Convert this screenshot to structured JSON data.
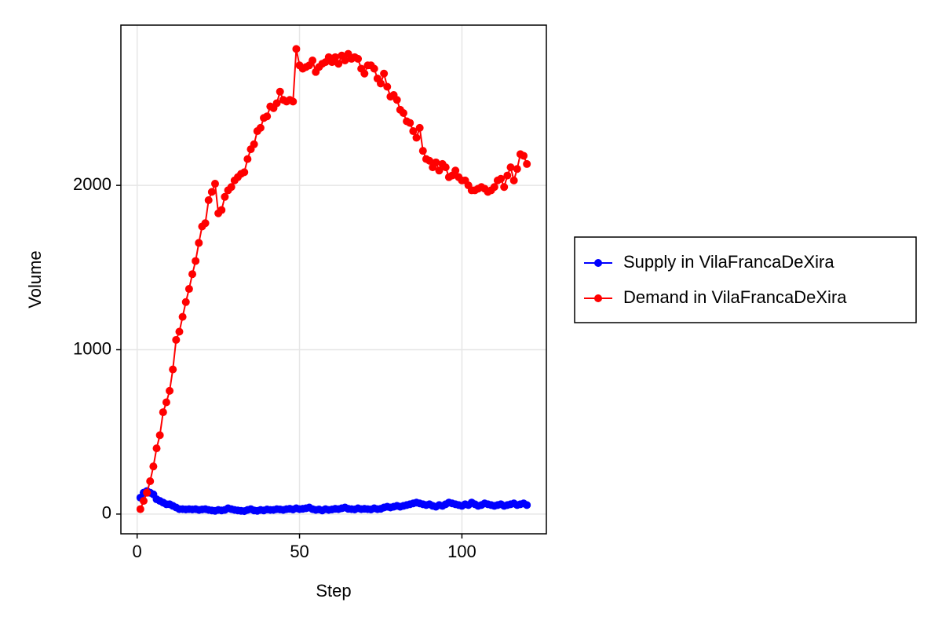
{
  "chart_data": {
    "type": "line",
    "x_label": "Step",
    "y_label": "Volume",
    "x": [
      1,
      2,
      3,
      4,
      5,
      6,
      7,
      8,
      9,
      10,
      11,
      12,
      13,
      14,
      15,
      16,
      17,
      18,
      19,
      20,
      21,
      22,
      23,
      24,
      25,
      26,
      27,
      28,
      29,
      30,
      31,
      32,
      33,
      34,
      35,
      36,
      37,
      38,
      39,
      40,
      41,
      42,
      43,
      44,
      45,
      46,
      47,
      48,
      49,
      50,
      51,
      52,
      53,
      54,
      55,
      56,
      57,
      58,
      59,
      60,
      61,
      62,
      63,
      64,
      65,
      66,
      67,
      68,
      69,
      70,
      71,
      72,
      73,
      74,
      75,
      76,
      77,
      78,
      79,
      80,
      81,
      82,
      83,
      84,
      85,
      86,
      87,
      88,
      89,
      90,
      91,
      92,
      93,
      94,
      95,
      96,
      97,
      98,
      99,
      100,
      101,
      102,
      103,
      104,
      105,
      106,
      107,
      108,
      109,
      110,
      111,
      112,
      113,
      114,
      115,
      116,
      117,
      118,
      119,
      120
    ],
    "series": [
      {
        "name": "Supply in VilaFrancaDeXira",
        "color": "#0000ff",
        "values": [
          100,
          130,
          140,
          130,
          120,
          90,
          80,
          70,
          60,
          60,
          50,
          40,
          30,
          30,
          28,
          30,
          28,
          30,
          25,
          28,
          30,
          25,
          22,
          20,
          25,
          22,
          25,
          35,
          30,
          25,
          22,
          20,
          18,
          25,
          30,
          22,
          20,
          25,
          22,
          28,
          25,
          25,
          30,
          28,
          25,
          30,
          32,
          28,
          35,
          30,
          32,
          35,
          40,
          30,
          25,
          28,
          22,
          30,
          25,
          28,
          32,
          30,
          35,
          40,
          32,
          30,
          28,
          35,
          30,
          32,
          30,
          28,
          35,
          30,
          32,
          40,
          45,
          40,
          45,
          50,
          45,
          50,
          55,
          60,
          65,
          70,
          65,
          60,
          55,
          60,
          50,
          45,
          55,
          50,
          60,
          70,
          65,
          60,
          55,
          50,
          60,
          55,
          70,
          60,
          50,
          55,
          65,
          60,
          55,
          50,
          55,
          60,
          50,
          55,
          60,
          65,
          55,
          60,
          65,
          55
        ]
      },
      {
        "name": "Demand in VilaFrancaDeXira",
        "color": "#ff0000",
        "values": [
          30,
          80,
          130,
          200,
          290,
          400,
          480,
          620,
          680,
          750,
          880,
          1060,
          1110,
          1200,
          1290,
          1370,
          1460,
          1540,
          1650,
          1750,
          1770,
          1910,
          1960,
          2010,
          1830,
          1850,
          1930,
          1970,
          1990,
          2030,
          2050,
          2070,
          2080,
          2160,
          2220,
          2250,
          2330,
          2350,
          2410,
          2420,
          2480,
          2470,
          2500,
          2570,
          2520,
          2510,
          2520,
          2510,
          2830,
          2730,
          2710,
          2720,
          2730,
          2760,
          2690,
          2720,
          2740,
          2750,
          2780,
          2750,
          2780,
          2740,
          2790,
          2760,
          2800,
          2770,
          2780,
          2770,
          2710,
          2680,
          2730,
          2730,
          2710,
          2650,
          2620,
          2680,
          2600,
          2540,
          2550,
          2520,
          2460,
          2440,
          2390,
          2380,
          2330,
          2290,
          2350,
          2210,
          2160,
          2150,
          2110,
          2140,
          2090,
          2130,
          2110,
          2050,
          2060,
          2090,
          2050,
          2030,
          2030,
          2000,
          1970,
          1970,
          1980,
          1990,
          1980,
          1960,
          1970,
          1990,
          2030,
          2040,
          1990,
          2060,
          2110,
          2030,
          2100,
          2190,
          2180,
          2130
        ]
      }
    ],
    "xlim": [
      -5,
      126
    ],
    "ylim": [
      -120,
      2975
    ],
    "xticks": [
      0,
      50,
      100
    ],
    "yticks": [
      0,
      1000,
      2000
    ],
    "grid": true
  }
}
